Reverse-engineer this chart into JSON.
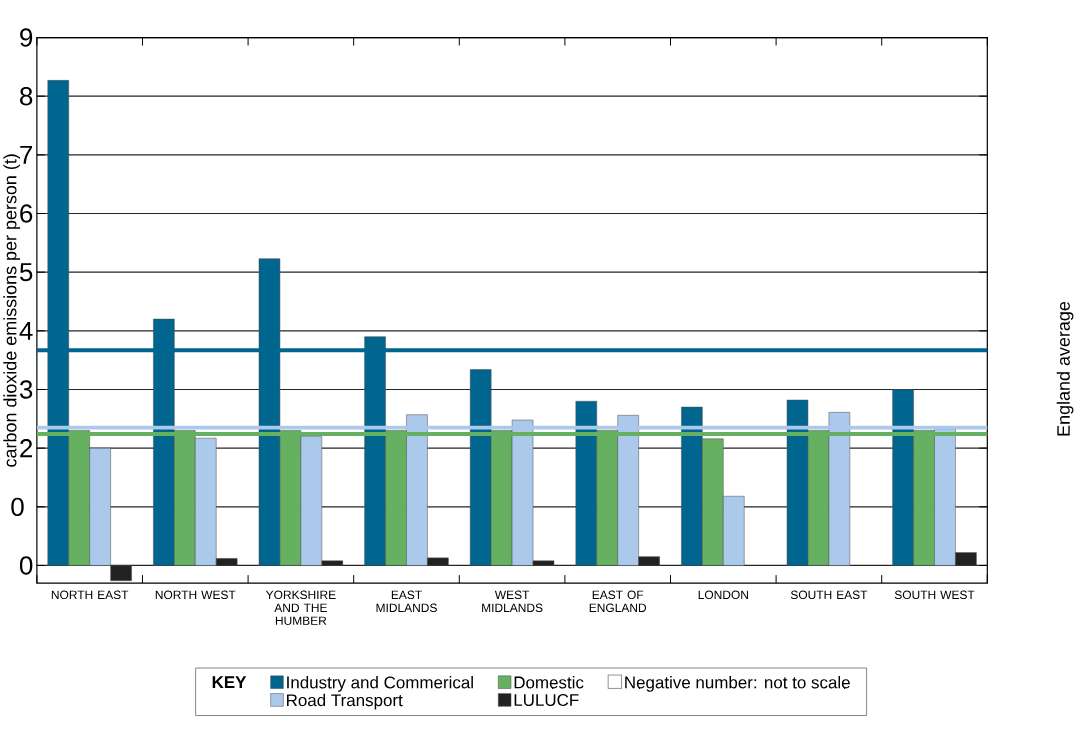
{
  "chart_data": {
    "type": "bar",
    "ylabel": "carbon dioxide emissions per person (t)",
    "legend_title": "KEY",
    "categories": [
      "NORTH EAST",
      "NORTH WEST",
      "YORKSHIRE AND THE HUMBER",
      "EAST MIDLANDS",
      "WEST MIDLANDS",
      "EAST OF ENGLAND",
      "LONDON",
      "SOUTH EAST",
      "SOUTH WEST"
    ],
    "series": [
      {
        "name": "Industry and Commerical",
        "color": "#00658f",
        "values": [
          8.27,
          4.2,
          5.23,
          3.9,
          3.34,
          2.8,
          2.7,
          2.82,
          3.0
        ]
      },
      {
        "name": "Domestic",
        "color": "#65b061",
        "values": [
          2.3,
          2.3,
          2.3,
          2.3,
          2.3,
          2.3,
          2.16,
          2.3,
          2.3
        ]
      },
      {
        "name": "Road Transport",
        "color": "#abc9ea",
        "values": [
          2.0,
          2.17,
          2.2,
          2.57,
          2.48,
          2.56,
          1.18,
          2.61,
          2.33
        ]
      },
      {
        "name": "LULUCF",
        "color": "#222222",
        "values": [
          -0.26,
          0.12,
          0.08,
          0.13,
          0.08,
          0.15,
          null,
          null,
          0.22
        ]
      }
    ],
    "ylim": [
      -0.3,
      9
    ],
    "yticks": [
      0,
      {
        "value": 1,
        "label": null
      },
      2,
      3,
      4,
      5,
      6,
      7,
      8,
      9
    ],
    "grid": "y",
    "legend": "bottom",
    "ref_lines": [
      {
        "axis": "y",
        "value": 3.67,
        "color": "#00658f"
      },
      {
        "axis": "y",
        "value": 2.35,
        "color": "#abc9ea"
      },
      {
        "axis": "y",
        "value": 2.24,
        "color": "#65b061"
      }
    ],
    "annotations": [
      "England average",
      "Negative number: not to scale",
      "0"
    ]
  }
}
